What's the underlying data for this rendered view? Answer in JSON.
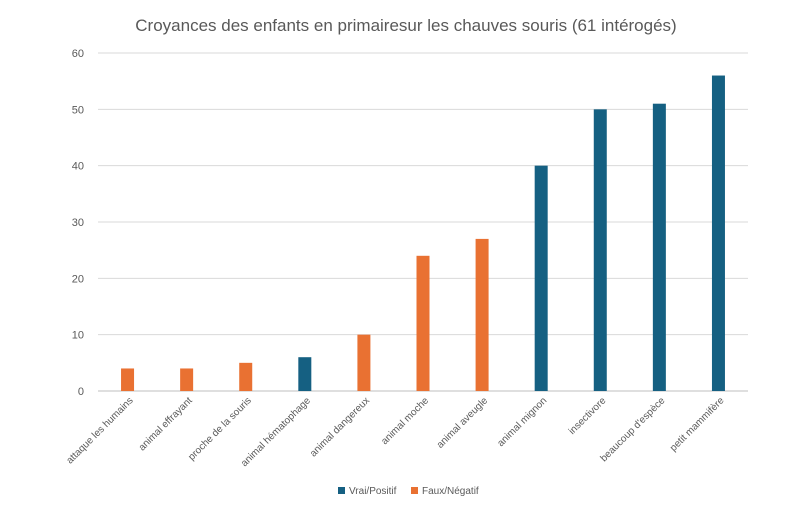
{
  "chart_data": {
    "type": "bar",
    "title": "Croyances des enfants en primairesur les chauves souris (61 intérogés)",
    "xlabel": "",
    "ylabel": "",
    "ylim": [
      0,
      60
    ],
    "yticks": [
      0,
      10,
      20,
      30,
      40,
      50,
      60
    ],
    "grid": true,
    "legend_position": "bottom",
    "categories": [
      "attaque les humains",
      "animal effrayant",
      "proche de la souris",
      "animal hématophage",
      "animal dangereux",
      "animal moche",
      "animal aveugle",
      "animal mignon",
      "insectivore",
      "beaucoup d'espèce",
      "petit mammifère"
    ],
    "series": [
      {
        "name": "Vrai/Positif",
        "color": "#156082",
        "values": [
          null,
          null,
          null,
          6,
          null,
          null,
          null,
          40,
          50,
          51,
          56
        ]
      },
      {
        "name": "Faux/Négatif",
        "color": "#E97132",
        "values": [
          4,
          4,
          5,
          null,
          10,
          24,
          27,
          null,
          null,
          null,
          null
        ]
      }
    ]
  }
}
